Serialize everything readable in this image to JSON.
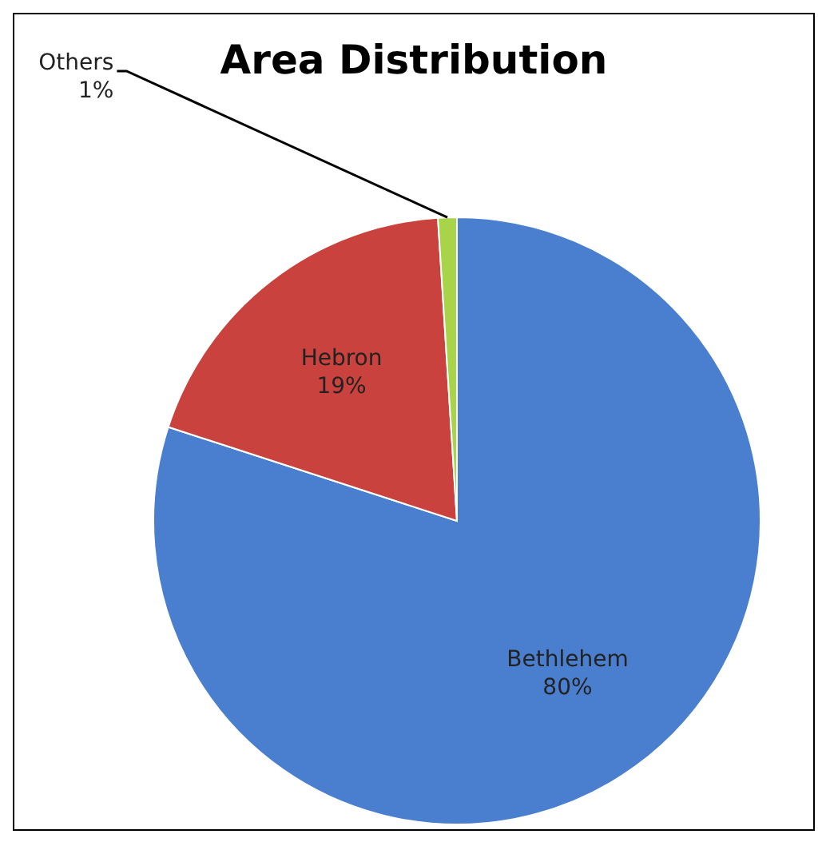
{
  "chart_data": {
    "type": "pie",
    "title": "Area Distribution",
    "categories": [
      "Bethlehem",
      "Hebron",
      "Others"
    ],
    "values": [
      80,
      19,
      1
    ],
    "colors": [
      "#4a7fcf",
      "#c9423e",
      "#a8d44a"
    ],
    "value_labels": [
      "80%",
      "19%",
      "1%"
    ],
    "legend": false
  }
}
